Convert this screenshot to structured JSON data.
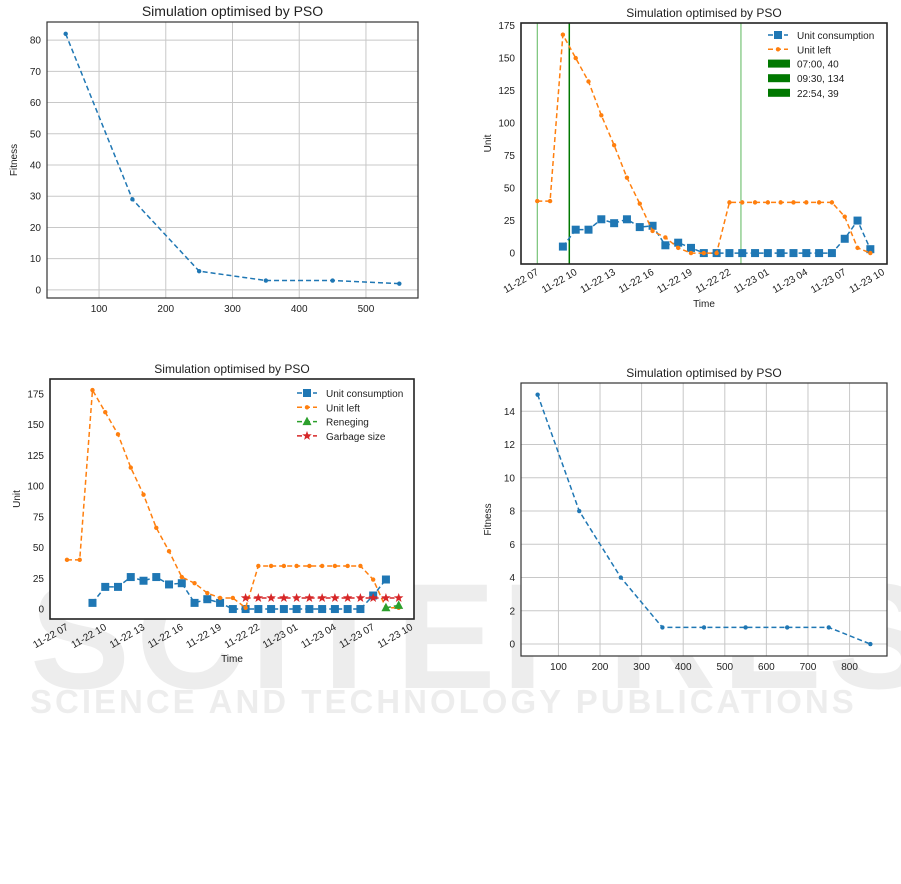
{
  "watermark": {
    "line1": "SCITEPRESS",
    "line2": "SCIENCE AND TECHNOLOGY PUBLICATIONS"
  },
  "colors": {
    "blue": "#1f77b4",
    "orange": "#ff7f0e",
    "green": "#2ca02c",
    "red": "#d62728",
    "vline_dark": "#007800",
    "vline_light": "#5cb85c",
    "grid": "#c8c8c8"
  },
  "chart_data": [
    {
      "type": "line",
      "title": "Simulation optimised by PSO",
      "xlabel": "",
      "ylabel": "Fitness",
      "grid": true,
      "xlim": [
        22,
        578
      ],
      "ylim": [
        -2.6,
        85.8
      ],
      "xticks": [
        100,
        200,
        300,
        400,
        500
      ],
      "yticks": [
        0,
        10,
        20,
        30,
        40,
        50,
        60,
        70,
        80
      ],
      "series": [
        {
          "name": "Fitness",
          "color": "#1f77b4",
          "marker": "dot",
          "x": [
            50,
            150,
            250,
            350,
            450,
            550
          ],
          "y": [
            82,
            29,
            6,
            3,
            3,
            2
          ]
        }
      ]
    },
    {
      "type": "line",
      "title": "Simulation optimised by PSO",
      "xlabel": "Time",
      "ylabel": "Unit",
      "grid": false,
      "x_unit": "hours since 11-22 07:00",
      "xlim": [
        -1.27,
        27.3
      ],
      "ylim": [
        -8.4,
        177
      ],
      "xticks": [
        0,
        3,
        6,
        9,
        12,
        15,
        18,
        21,
        24,
        27
      ],
      "xtick_labels": [
        "11-22 07",
        "11-22 10",
        "11-22 13",
        "11-22 16",
        "11-22 19",
        "11-22 22",
        "11-23 01",
        "11-23 04",
        "11-23 07",
        "11-23 10"
      ],
      "yticks": [
        0,
        25,
        50,
        75,
        100,
        125,
        150,
        175
      ],
      "legend_position": "top-right",
      "series": [
        {
          "name": "Unit consumption",
          "color": "#1f77b4",
          "marker": "square",
          "y": [
            null,
            null,
            5,
            18,
            18,
            26,
            23,
            26,
            20,
            21,
            6,
            8,
            4,
            0,
            0,
            0,
            0,
            0,
            0,
            0,
            0,
            0,
            0,
            0,
            11,
            25,
            3
          ]
        },
        {
          "name": "Unit left",
          "color": "#ff7f0e",
          "marker": "dot",
          "y": [
            40,
            40,
            168,
            150,
            132,
            106,
            83,
            58,
            38,
            17,
            12,
            4,
            0,
            0,
            0,
            39,
            39,
            39,
            39,
            39,
            39,
            39,
            39,
            39,
            28,
            4,
            0
          ]
        }
      ],
      "vlines": [
        {
          "label": "07:00, 40",
          "x": 0,
          "style": "light"
        },
        {
          "label": "09:30, 134",
          "x": 2.5,
          "style": "dark"
        },
        {
          "label": "22:54, 39",
          "x": 15.9,
          "style": "light"
        }
      ]
    },
    {
      "type": "line",
      "title": "Simulation optimised by PSO",
      "xlabel": "Time",
      "ylabel": "Unit",
      "grid": false,
      "x_unit": "hours since 11-22 07:00",
      "xlim": [
        -1.33,
        27.2
      ],
      "ylim": [
        -8.1,
        187
      ],
      "xticks": [
        0,
        3,
        6,
        9,
        12,
        15,
        18,
        21,
        24,
        27
      ],
      "xtick_labels": [
        "11-22 07",
        "11-22 10",
        "11-22 13",
        "11-22 16",
        "11-22 19",
        "11-22 22",
        "11-23 01",
        "11-23 04",
        "11-23 07",
        "11-23 10"
      ],
      "yticks": [
        0,
        25,
        50,
        75,
        100,
        125,
        150,
        175
      ],
      "legend_position": "top-right",
      "series": [
        {
          "name": "Unit consumption",
          "color": "#1f77b4",
          "marker": "square",
          "y": [
            null,
            null,
            5,
            18,
            18,
            26,
            23,
            26,
            20,
            21,
            5,
            8,
            5,
            0,
            0,
            0,
            0,
            0,
            0,
            0,
            0,
            0,
            0,
            0,
            11,
            24,
            null
          ]
        },
        {
          "name": "Unit left",
          "color": "#ff7f0e",
          "marker": "dot",
          "y": [
            40,
            40,
            178,
            160,
            142,
            115,
            93,
            66,
            47,
            26,
            21,
            13,
            9,
            9,
            1,
            35,
            35,
            35,
            35,
            35,
            35,
            35,
            35,
            35,
            24,
            1,
            1
          ]
        },
        {
          "name": "Reneging",
          "color": "#2ca02c",
          "marker": "triangle",
          "y": [
            null,
            null,
            null,
            null,
            null,
            null,
            null,
            null,
            null,
            null,
            null,
            null,
            null,
            null,
            null,
            null,
            null,
            null,
            null,
            null,
            null,
            null,
            null,
            null,
            null,
            1,
            3
          ]
        },
        {
          "name": "Garbage size",
          "color": "#d62728",
          "marker": "star",
          "y": [
            null,
            null,
            null,
            null,
            null,
            null,
            null,
            null,
            null,
            null,
            null,
            null,
            null,
            null,
            9,
            9,
            9,
            9,
            9,
            9,
            9,
            9,
            9,
            9,
            9,
            9,
            9
          ]
        }
      ]
    },
    {
      "type": "line",
      "title": "Simulation optimised by PSO",
      "xlabel": "",
      "ylabel": "Fitness",
      "grid": true,
      "xlim": [
        10,
        890
      ],
      "ylim": [
        -0.72,
        15.7
      ],
      "xticks": [
        100,
        200,
        300,
        400,
        500,
        600,
        700,
        800
      ],
      "yticks": [
        0,
        2,
        4,
        6,
        8,
        10,
        12,
        14
      ],
      "series": [
        {
          "name": "Fitness",
          "color": "#1f77b4",
          "marker": "dot",
          "x": [
            50,
            150,
            250,
            350,
            450,
            550,
            650,
            750,
            850
          ],
          "y": [
            15,
            8,
            4,
            1,
            1,
            1,
            1,
            1,
            0
          ]
        }
      ]
    }
  ]
}
